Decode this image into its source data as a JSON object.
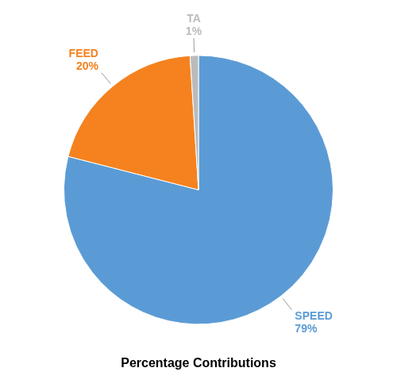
{
  "chart_data": {
    "type": "pie",
    "title": "Percentage Contributions",
    "categories": [
      "SPEED",
      "FEED",
      "TA"
    ],
    "values": [
      79,
      20,
      1
    ],
    "value_labels": [
      "79%",
      "20%",
      "1%"
    ],
    "colors": [
      "#5B9BD5",
      "#F5821F",
      "#BBBBBB"
    ],
    "data_labels": true
  }
}
